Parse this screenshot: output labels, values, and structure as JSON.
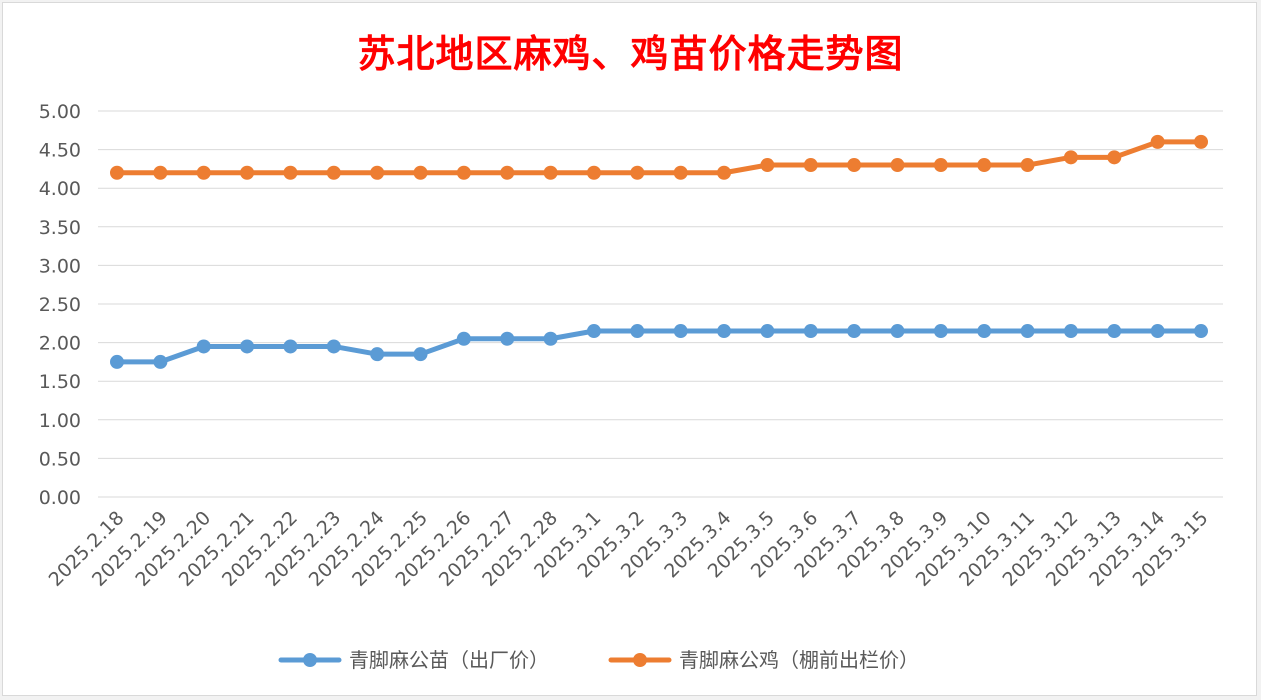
{
  "chart_data": {
    "type": "line",
    "title": "苏北地区麻鸡、鸡苗价格走势图",
    "categories": [
      "2025.2.18",
      "2025.2.19",
      "2025.2.20",
      "2025.2.21",
      "2025.2.22",
      "2025.2.23",
      "2025.2.24",
      "2025.2.25",
      "2025.2.26",
      "2025.2.27",
      "2025.2.28",
      "2025.3.1",
      "2025.3.2",
      "2025.3.3",
      "2025.3.4",
      "2025.3.5",
      "2025.3.6",
      "2025.3.7",
      "2025.3.8",
      "2025.3.9",
      "2025.3.10",
      "2025.3.11",
      "2025.3.12",
      "2025.3.13",
      "2025.3.14",
      "2025.3.15"
    ],
    "series": [
      {
        "name": "青脚麻公苗（出厂价）",
        "color": "#5b9bd5",
        "values": [
          1.75,
          1.75,
          1.95,
          1.95,
          1.95,
          1.95,
          1.85,
          1.85,
          2.05,
          2.05,
          2.05,
          2.15,
          2.15,
          2.15,
          2.15,
          2.15,
          2.15,
          2.15,
          2.15,
          2.15,
          2.15,
          2.15,
          2.15,
          2.15,
          2.15,
          2.15
        ]
      },
      {
        "name": "青脚麻公鸡（棚前出栏价）",
        "color": "#ed7d31",
        "values": [
          4.2,
          4.2,
          4.2,
          4.2,
          4.2,
          4.2,
          4.2,
          4.2,
          4.2,
          4.2,
          4.2,
          4.2,
          4.2,
          4.2,
          4.2,
          4.3,
          4.3,
          4.3,
          4.3,
          4.3,
          4.3,
          4.3,
          4.4,
          4.4,
          4.6,
          4.6
        ]
      }
    ],
    "y_ticks": [
      "0.00",
      "0.50",
      "1.00",
      "1.50",
      "2.00",
      "2.50",
      "3.00",
      "3.50",
      "4.00",
      "4.50",
      "5.00"
    ],
    "ylim": [
      0,
      5
    ],
    "grid": true,
    "legend_position": "bottom"
  }
}
